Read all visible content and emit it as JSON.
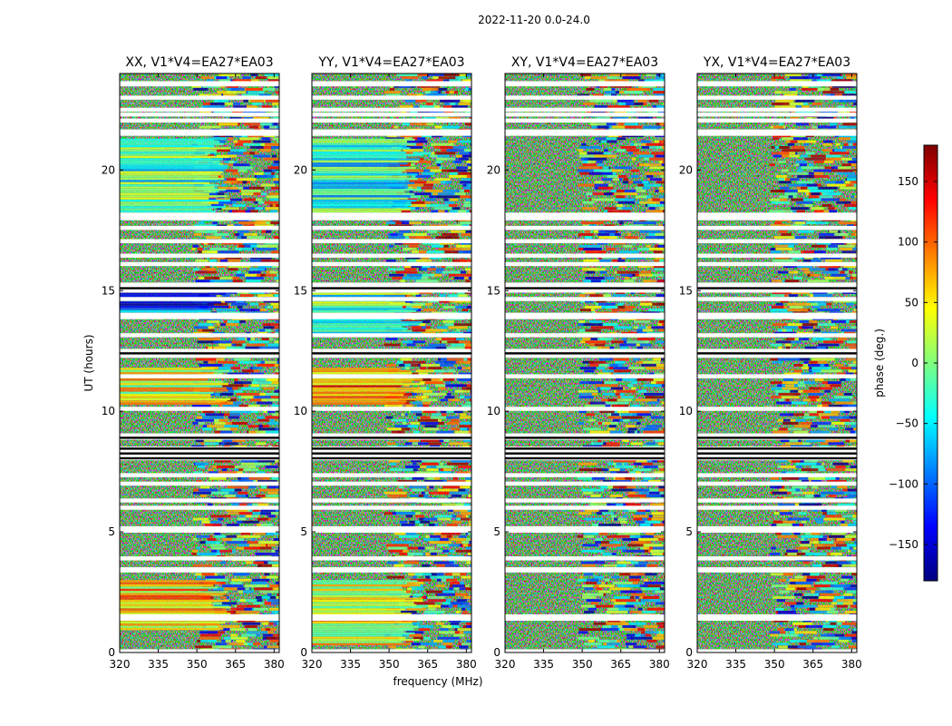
{
  "chart_data": {
    "type": "heatmap",
    "suptitle": "2022-11-20 0.0-24.0",
    "xlabel": "frequency (MHz)",
    "ylabel": "UT (hours)",
    "xlim": [
      320,
      382
    ],
    "ylim": [
      0,
      24
    ],
    "xticks": [
      320,
      335,
      350,
      365,
      380
    ],
    "yticks": [
      0,
      5,
      10,
      15,
      20
    ],
    "colorbar": {
      "label": "phase (deg.)",
      "range": [
        -180,
        180
      ],
      "ticks": [
        150,
        100,
        50,
        0,
        -50,
        -100,
        -150
      ],
      "tick_labels": [
        "150",
        "100",
        "50",
        "0",
        "−50",
        "−100",
        "−150"
      ],
      "colormap": "jet",
      "colors": [
        "#00007f",
        "#0000ff",
        "#007fff",
        "#00ffff",
        "#7fff7f",
        "#ffff00",
        "#ff7f00",
        "#ff0000",
        "#7f0000"
      ]
    },
    "panels": [
      {
        "title": "XX, V1*V4=EA27*EA03",
        "coherent_bands": [
          [
            18.3,
            21.3,
            -20
          ],
          [
            14.0,
            15.0,
            -110
          ],
          [
            10.3,
            11.8,
            40
          ],
          [
            1.0,
            3.0,
            60
          ]
        ]
      },
      {
        "title": "YY, V1*V4=EA27*EA03",
        "coherent_bands": [
          [
            18.3,
            21.3,
            -40
          ],
          [
            13.2,
            15.0,
            -20
          ],
          [
            10.3,
            11.8,
            90
          ],
          [
            0.3,
            3.0,
            40
          ]
        ]
      },
      {
        "title": "XY, V1*V4=EA27*EA03",
        "coherent_bands": []
      },
      {
        "title": "YX, V1*V4=EA27*EA03",
        "coherent_bands": []
      }
    ],
    "flagged_hours": [
      0.05,
      1.4,
      1.5,
      3.4,
      3.45,
      3.9,
      5.05,
      5.15,
      6.0,
      6.3,
      7.0,
      7.35,
      8.05,
      8.15,
      8.25,
      8.35,
      8.45,
      8.9,
      9.0,
      10.1,
      11.45,
      12.3,
      12.4,
      12.5,
      13.15,
      13.9,
      14.0,
      14.65,
      15.0,
      15.1,
      15.25,
      16.1,
      16.45,
      17.05,
      17.6,
      18.0,
      18.15,
      21.5,
      21.55,
      21.6,
      22.05,
      22.3,
      22.5,
      23.0,
      23.55,
      23.6
    ],
    "black_rows": [
      8.25,
      8.45,
      8.9,
      12.4,
      15.1,
      8.05
    ]
  }
}
